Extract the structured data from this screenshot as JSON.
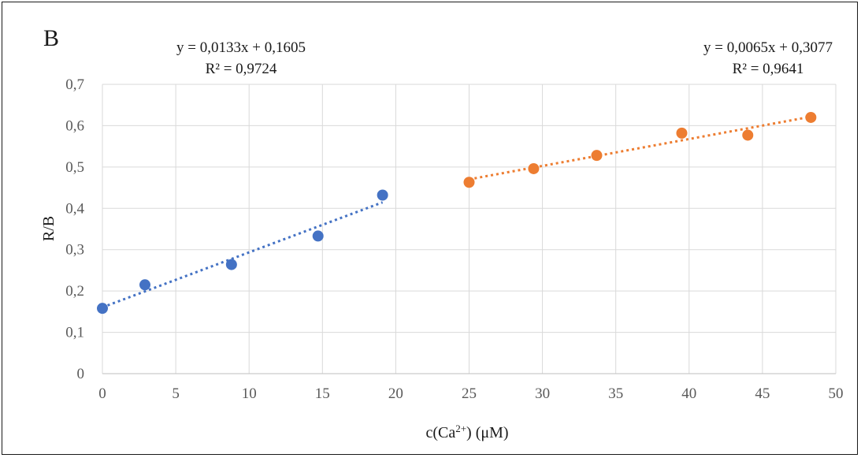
{
  "chart_data": {
    "type": "scatter",
    "panel_label": "B",
    "xlabel_prefix": "c(Ca",
    "xlabel_sup": "2+",
    "xlabel_suffix": ") (μM)",
    "ylabel": "R/B",
    "xlim": [
      0,
      50
    ],
    "ylim": [
      0,
      0.7
    ],
    "x_ticks": [
      0,
      5,
      10,
      15,
      20,
      25,
      30,
      35,
      40,
      45,
      50
    ],
    "x_tick_labels": [
      "0",
      "5",
      "10",
      "15",
      "20",
      "25",
      "30",
      "35",
      "40",
      "45",
      "50"
    ],
    "y_ticks": [
      0,
      0.1,
      0.2,
      0.3,
      0.4,
      0.5,
      0.6,
      0.7
    ],
    "y_tick_labels": [
      "0",
      "0,1",
      "0,2",
      "0,3",
      "0,4",
      "0,5",
      "0,6",
      "0,7"
    ],
    "grid": true,
    "series": [
      {
        "color": "#4472C4",
        "x": [
          0,
          2.9,
          8.8,
          14.7,
          19.1
        ],
        "y": [
          0.158,
          0.215,
          0.264,
          0.333,
          0.432
        ],
        "trendline": {
          "slope": 0.0133,
          "intercept": 0.1605,
          "x_range": [
            0,
            19.1
          ],
          "style": "dotted"
        },
        "equation": "y = 0,0133x + 0,1605",
        "r_squared": "R² = 0,9724"
      },
      {
        "color": "#ED7D31",
        "x": [
          25,
          29.4,
          33.7,
          39.5,
          44,
          48.3
        ],
        "y": [
          0.463,
          0.496,
          0.528,
          0.582,
          0.577,
          0.62
        ],
        "trendline": {
          "slope": 0.0065,
          "intercept": 0.3077,
          "x_range": [
            25,
            48.3
          ],
          "style": "dotted"
        },
        "equation": "y = 0,0065x + 0,3077",
        "r_squared": "R² = 0,9641"
      }
    ]
  }
}
